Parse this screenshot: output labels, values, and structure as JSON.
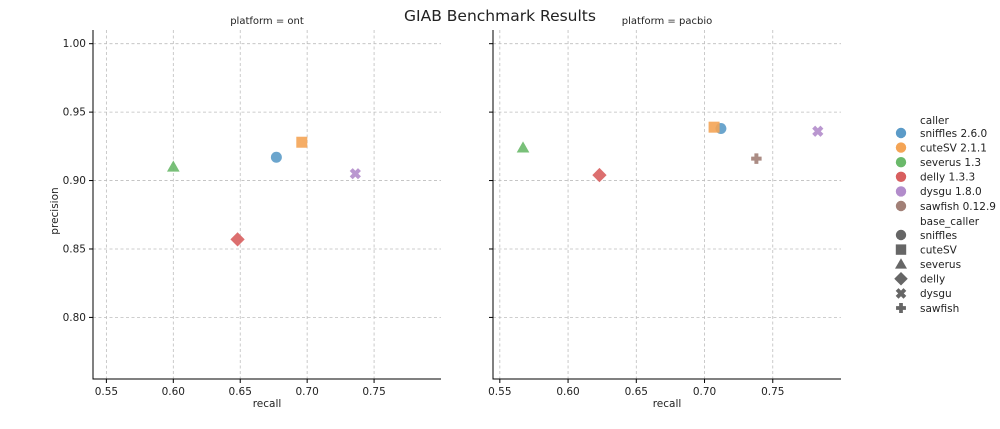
{
  "title": "GIAB Benchmark Results",
  "colors": {
    "sniffles 2.6.0": "#5b9bc8",
    "cuteSV 2.1.1": "#f4a455",
    "severus 1.3": "#6ab96a",
    "delly 1.3.3": "#d85f5f",
    "dysgu 1.8.0": "#b28ccb",
    "sawfish 0.12.9": "#a28077",
    "shape_marker": "#666666"
  },
  "chart_data": [
    {
      "type": "scatter",
      "panel_title": "platform = ont",
      "xlabel": "recall",
      "ylabel": "precision",
      "xlim": [
        0.54,
        0.8
      ],
      "ylim": [
        0.755,
        1.01
      ],
      "xticks": [
        "0.55",
        "0.60",
        "0.65",
        "0.70",
        "0.75"
      ],
      "yticks": [
        "0.80",
        "0.85",
        "0.90",
        "0.95",
        "1.00"
      ],
      "grid": true,
      "points": [
        {
          "caller": "sniffles 2.6.0",
          "base_caller": "sniffles",
          "x": 0.677,
          "y": 0.917
        },
        {
          "caller": "cuteSV 2.1.1",
          "base_caller": "cuteSV",
          "x": 0.696,
          "y": 0.928
        },
        {
          "caller": "severus 1.3",
          "base_caller": "severus",
          "x": 0.6,
          "y": 0.91
        },
        {
          "caller": "delly 1.3.3",
          "base_caller": "delly",
          "x": 0.648,
          "y": 0.857
        },
        {
          "caller": "dysgu 1.8.0",
          "base_caller": "dysgu",
          "x": 0.736,
          "y": 0.905
        }
      ]
    },
    {
      "type": "scatter",
      "panel_title": "platform = pacbio",
      "xlabel": "recall",
      "ylabel": "",
      "xlim": [
        0.545,
        0.8
      ],
      "ylim": [
        0.755,
        1.01
      ],
      "xticks": [
        "0.55",
        "0.60",
        "0.65",
        "0.70",
        "0.75"
      ],
      "yticks": [],
      "grid": true,
      "points": [
        {
          "caller": "sniffles 2.6.0",
          "base_caller": "sniffles",
          "x": 0.712,
          "y": 0.938
        },
        {
          "caller": "cuteSV 2.1.1",
          "base_caller": "cuteSV",
          "x": 0.707,
          "y": 0.939
        },
        {
          "caller": "severus 1.3",
          "base_caller": "severus",
          "x": 0.567,
          "y": 0.924
        },
        {
          "caller": "delly 1.3.3",
          "base_caller": "delly",
          "x": 0.623,
          "y": 0.904
        },
        {
          "caller": "dysgu 1.8.0",
          "base_caller": "dysgu",
          "x": 0.783,
          "y": 0.936
        },
        {
          "caller": "sawfish 0.12.9",
          "base_caller": "sawfish",
          "x": 0.738,
          "y": 0.916
        }
      ]
    }
  ],
  "legend": {
    "placement": "right",
    "caller_title": "caller",
    "callers": [
      "sniffles 2.6.0",
      "cuteSV 2.1.1",
      "severus 1.3",
      "delly 1.3.3",
      "dysgu 1.8.0",
      "sawfish 0.12.9"
    ],
    "base_caller_title": "base_caller",
    "base_callers": [
      {
        "label": "sniffles",
        "shape": "circle"
      },
      {
        "label": "cuteSV",
        "shape": "square"
      },
      {
        "label": "severus",
        "shape": "triangle"
      },
      {
        "label": "delly",
        "shape": "diamond"
      },
      {
        "label": "dysgu",
        "shape": "x"
      },
      {
        "label": "sawfish",
        "shape": "plus"
      }
    ]
  }
}
